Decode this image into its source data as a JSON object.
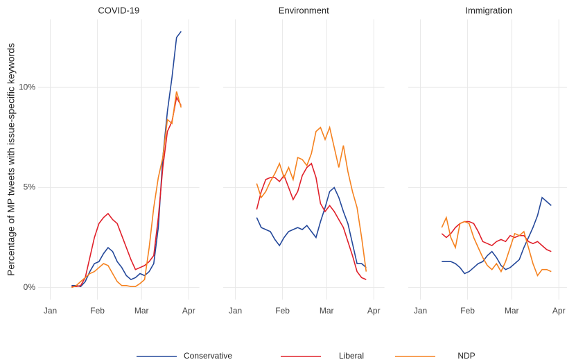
{
  "chart_data": [
    {
      "type": "line",
      "title": "COVID-19",
      "ylabel": "Percentage of MP tweets with issue-specific keywords",
      "legend": "bottom",
      "grid": true,
      "x": [
        15,
        18,
        21,
        24,
        27,
        30,
        33,
        36,
        39,
        42,
        45,
        48,
        51,
        54,
        57,
        60,
        63,
        66,
        69,
        72,
        75,
        78,
        81,
        84,
        87
      ],
      "xlim": [
        -7,
        99
      ],
      "xticks": [
        {
          "value": 1,
          "label": "Jan"
        },
        {
          "value": 32,
          "label": "Feb"
        },
        {
          "value": 61,
          "label": "Mar"
        },
        {
          "value": 92,
          "label": "Apr"
        }
      ],
      "ylim": [
        -0.6,
        13.4
      ],
      "yticks": [
        {
          "value": 0,
          "label": "0%"
        },
        {
          "value": 5,
          "label": "5%"
        },
        {
          "value": 10,
          "label": "10%"
        }
      ],
      "series": [
        {
          "name": "Conservative",
          "color": "#24489a",
          "values": [
            0.1,
            0.1,
            0.05,
            0.3,
            0.8,
            1.2,
            1.3,
            1.7,
            2.0,
            1.8,
            1.3,
            1.0,
            0.6,
            0.4,
            0.5,
            0.7,
            0.6,
            0.8,
            1.2,
            3.0,
            6.5,
            8.8,
            10.5,
            12.5,
            12.8
          ]
        },
        {
          "name": "Liberal",
          "color": "#e0202a",
          "values": [
            0.05,
            0.05,
            0.1,
            0.5,
            1.5,
            2.5,
            3.2,
            3.5,
            3.7,
            3.4,
            3.2,
            2.6,
            2.0,
            1.4,
            0.9,
            1.0,
            1.1,
            1.3,
            1.6,
            3.5,
            6.0,
            7.8,
            8.3,
            9.5,
            9.1
          ]
        },
        {
          "name": "NDP",
          "color": "#f58220",
          "values": [
            0,
            0.1,
            0.3,
            0.5,
            0.7,
            0.8,
            1.0,
            1.2,
            1.1,
            0.7,
            0.3,
            0.1,
            0.1,
            0.05,
            0.05,
            0.2,
            0.4,
            2.0,
            4.0,
            5.5,
            6.5,
            8.4,
            8.2,
            9.8,
            9.0
          ]
        }
      ]
    },
    {
      "type": "line",
      "title": "Environment",
      "grid": true,
      "x": [
        15,
        18,
        21,
        24,
        27,
        30,
        33,
        36,
        39,
        42,
        45,
        48,
        51,
        54,
        57,
        60,
        63,
        66,
        69,
        72,
        75,
        78,
        81,
        84,
        87
      ],
      "xlim": [
        -7,
        99
      ],
      "xticks": [
        {
          "value": 1,
          "label": "Jan"
        },
        {
          "value": 32,
          "label": "Feb"
        },
        {
          "value": 61,
          "label": "Mar"
        },
        {
          "value": 92,
          "label": "Apr"
        }
      ],
      "ylim": [
        -0.6,
        13.4
      ],
      "series": [
        {
          "name": "Conservative",
          "color": "#24489a",
          "values": [
            3.5,
            3.0,
            2.9,
            2.8,
            2.4,
            2.1,
            2.5,
            2.8,
            2.9,
            3.0,
            2.9,
            3.1,
            2.8,
            2.5,
            3.3,
            4.0,
            4.8,
            5.0,
            4.5,
            3.8,
            3.2,
            2.2,
            1.2,
            1.2,
            1.0
          ]
        },
        {
          "name": "Liberal",
          "color": "#e0202a",
          "values": [
            3.9,
            4.8,
            5.4,
            5.5,
            5.5,
            5.3,
            5.6,
            5.0,
            4.4,
            4.8,
            5.6,
            6.0,
            6.2,
            5.5,
            4.2,
            3.8,
            4.1,
            3.8,
            3.4,
            3.0,
            2.3,
            1.6,
            0.8,
            0.5,
            0.4
          ]
        },
        {
          "name": "NDP",
          "color": "#f58220",
          "values": [
            5.2,
            4.5,
            4.8,
            5.3,
            5.7,
            6.2,
            5.5,
            6.0,
            5.4,
            6.5,
            6.4,
            6.1,
            6.7,
            7.8,
            8.0,
            7.4,
            8.0,
            7.0,
            6.0,
            7.1,
            5.8,
            4.8,
            4.0,
            2.5,
            0.8
          ]
        }
      ]
    },
    {
      "type": "line",
      "title": "Immigration",
      "grid": true,
      "x": [
        15,
        18,
        21,
        24,
        27,
        30,
        33,
        36,
        39,
        42,
        45,
        48,
        51,
        54,
        57,
        60,
        63,
        66,
        69,
        72,
        75,
        78,
        81,
        84,
        87
      ],
      "xlim": [
        -7,
        99
      ],
      "xticks": [
        {
          "value": 1,
          "label": "Jan"
        },
        {
          "value": 32,
          "label": "Feb"
        },
        {
          "value": 61,
          "label": "Mar"
        },
        {
          "value": 92,
          "label": "Apr"
        }
      ],
      "ylim": [
        -0.6,
        13.4
      ],
      "series": [
        {
          "name": "Conservative",
          "color": "#24489a",
          "values": [
            1.3,
            1.3,
            1.3,
            1.2,
            1.0,
            0.7,
            0.8,
            1.0,
            1.2,
            1.3,
            1.6,
            1.8,
            1.5,
            1.1,
            0.9,
            1.0,
            1.2,
            1.4,
            2.0,
            2.5,
            3.0,
            3.6,
            4.5,
            4.3,
            4.1
          ]
        },
        {
          "name": "Liberal",
          "color": "#e0202a",
          "values": [
            2.7,
            2.5,
            2.7,
            3.0,
            3.2,
            3.3,
            3.3,
            3.2,
            2.8,
            2.3,
            2.2,
            2.1,
            2.3,
            2.4,
            2.3,
            2.6,
            2.5,
            2.6,
            2.6,
            2.3,
            2.2,
            2.3,
            2.1,
            1.9,
            1.8
          ]
        },
        {
          "name": "NDP",
          "color": "#f58220",
          "values": [
            3.0,
            3.5,
            2.5,
            2.0,
            3.2,
            3.3,
            3.2,
            2.5,
            2.0,
            1.5,
            1.1,
            0.9,
            1.2,
            0.8,
            1.3,
            2.0,
            2.7,
            2.6,
            2.8,
            2.0,
            1.2,
            0.6,
            0.9,
            0.9,
            0.8
          ]
        }
      ]
    }
  ]
}
